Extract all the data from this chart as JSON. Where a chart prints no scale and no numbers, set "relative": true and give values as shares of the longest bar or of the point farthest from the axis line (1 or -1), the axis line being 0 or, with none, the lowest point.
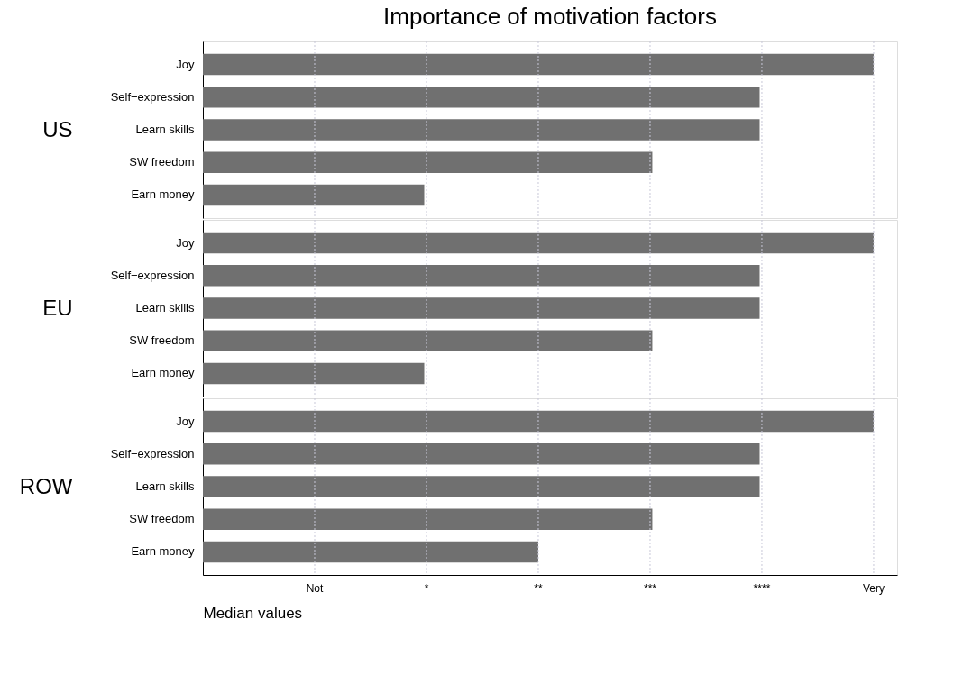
{
  "chart_data": [
    {
      "type": "bar",
      "orientation": "horizontal",
      "relative": true,
      "title": "Importance of motivation factors",
      "ylabel": "US",
      "categories": [
        "Joy",
        "Self−expression",
        "Learn skills",
        "SW freedom",
        "Earn money"
      ],
      "values": [
        1,
        0.83,
        0.83,
        0.67,
        0.33
      ],
      "color": "#707070",
      "grid": "x",
      "tick_labels": "y"
    },
    {
      "type": "bar",
      "orientation": "horizontal",
      "relative": true,
      "ylabel": "EU",
      "categories": [
        "Joy",
        "Self−expression",
        "Learn skills",
        "SW freedom",
        "Earn money"
      ],
      "values": [
        1,
        0.83,
        0.83,
        0.67,
        0.33
      ],
      "color": "#707070",
      "grid": "x",
      "tick_labels": "y"
    },
    {
      "type": "bar",
      "orientation": "horizontal",
      "relative": true,
      "ylabel": "ROW",
      "xlabel": "Median values",
      "categories": [
        "Joy",
        "Self−expression",
        "Learn skills",
        "SW freedom",
        "Earn money"
      ],
      "values": [
        1,
        0.83,
        0.83,
        0.67,
        0.5
      ],
      "color": "#707070",
      "grid": "x",
      "annotations": [
        "Not",
        "*",
        "**",
        "***",
        "****",
        "Very"
      ]
    }
  ]
}
